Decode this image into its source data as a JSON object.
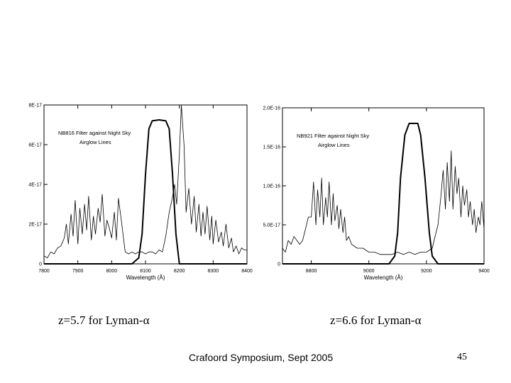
{
  "chart_data": [
    {
      "type": "line",
      "series": [
        {
          "name": "Night Sky Airglow Lines",
          "x": [
            7800,
            7810,
            7820,
            7830,
            7840,
            7850,
            7860,
            7866,
            7872,
            7880,
            7886,
            7892,
            7900,
            7906,
            7913,
            7920,
            7926,
            7932,
            7940,
            7946,
            7952,
            7960,
            7966,
            7972,
            7980,
            7986,
            7993,
            8000,
            8008,
            8014,
            8020,
            8030,
            8040,
            8050,
            8060,
            8070,
            8080,
            8090,
            8100,
            8110,
            8120,
            8130,
            8140,
            8150,
            8160,
            8170,
            8178,
            8186,
            8192,
            8200,
            8206,
            8214,
            8220,
            8228,
            8236,
            8244,
            8250,
            8258,
            8264,
            8270,
            8276,
            8282,
            8290,
            8296,
            8300,
            8308,
            8316,
            8324,
            8330,
            8338,
            8346,
            8354,
            8360,
            8368,
            8376,
            8384,
            8392,
            8400
          ],
          "y": [
            4e-18,
            3e-18,
            6e-18,
            5e-18,
            8e-18,
            9e-18,
            1.3e-17,
            2e-17,
            1e-17,
            2.5e-17,
            1.4e-17,
            3.2e-17,
            1e-17,
            2.8e-17,
            1.5e-17,
            3e-17,
            1.7e-17,
            3.4e-17,
            1.2e-17,
            2.4e-17,
            1.5e-17,
            2.8e-17,
            2.1e-17,
            3.5e-17,
            1.4e-17,
            2.2e-17,
            1.8e-17,
            1.3e-17,
            2.6e-17,
            1.2e-17,
            3.3e-17,
            2e-17,
            6e-18,
            5e-18,
            6e-18,
            5e-18,
            6e-18,
            6e-18,
            5e-18,
            6e-18,
            6e-18,
            5e-18,
            7e-18,
            6e-18,
            1.4e-17,
            2.6e-17,
            3.2e-17,
            4e-17,
            3e-17,
            5.5e-17,
            8e-17,
            6e-17,
            2.6e-17,
            3.8e-17,
            2e-17,
            3.4e-17,
            1.6e-17,
            3e-17,
            1.4e-17,
            2.6e-17,
            1.5e-17,
            2.9e-17,
            1.2e-17,
            2.4e-17,
            1e-17,
            2.2e-17,
            1.1e-17,
            1.6e-17,
            9e-18,
            2e-17,
            8e-18,
            1.3e-17,
            6e-18,
            9e-18,
            5e-18,
            8e-18,
            7e-18,
            7e-18
          ]
        },
        {
          "name": "NB816 Filter",
          "x": [
            7800,
            8040,
            8060,
            8080,
            8090,
            8100,
            8110,
            8120,
            8140,
            8160,
            8170,
            8180,
            8190,
            8200,
            8400
          ],
          "y": [
            0,
            0,
            0,
            3e-18,
            1.5e-17,
            4.5e-17,
            6.8e-17,
            7.2e-17,
            7.25e-17,
            7.2e-17,
            6.8e-17,
            4.5e-17,
            1.5e-17,
            0,
            0
          ]
        }
      ],
      "annotations": [
        "NB816 Filter against Night Sky",
        "Airglow Lines"
      ],
      "xlabel": "Wavelength (Å)",
      "xlim": [
        7800,
        8400
      ],
      "ylim": [
        0,
        8e-17
      ],
      "xticks": [
        7800,
        7900,
        8000,
        8100,
        8200,
        8300,
        8400
      ],
      "yticks": [
        0,
        2e-17,
        4e-17,
        6e-17,
        8e-17
      ],
      "ytick_labels": [
        "0",
        "2E-17",
        "4E-17",
        "6E-17",
        "8E-17"
      ]
    },
    {
      "type": "line",
      "series": [
        {
          "name": "Night Sky Airglow Lines",
          "x": [
            8700,
            8710,
            8720,
            8730,
            8740,
            8750,
            8760,
            8770,
            8780,
            8790,
            8800,
            8808,
            8816,
            8822,
            8830,
            8836,
            8842,
            8850,
            8856,
            8862,
            8870,
            8876,
            8882,
            8890,
            8896,
            8902,
            8910,
            8916,
            8922,
            8930,
            8940,
            8960,
            8980,
            9000,
            9020,
            9040,
            9060,
            9080,
            9100,
            9120,
            9140,
            9160,
            9180,
            9200,
            9220,
            9230,
            9240,
            9250,
            9258,
            9266,
            9272,
            9280,
            9286,
            9292,
            9300,
            9306,
            9312,
            9320,
            9326,
            9332,
            9340,
            9346,
            9352,
            9360,
            9366,
            9372,
            9380,
            9386,
            9392,
            9400
          ],
          "y": [
            2e-17,
            1.5e-17,
            3e-17,
            2.5e-17,
            3.5e-17,
            3e-17,
            2.5e-17,
            3e-17,
            4.5e-17,
            6e-17,
            6e-17,
            1.05e-16,
            5e-17,
            9.5e-17,
            6e-17,
            1.1e-16,
            5e-17,
            8.5e-17,
            6e-17,
            1.05e-16,
            5e-17,
            9e-17,
            5.5e-17,
            7.5e-17,
            4.5e-17,
            7e-17,
            4e-17,
            6e-17,
            3e-17,
            3.5e-17,
            2.5e-17,
            2e-17,
            2e-17,
            1.5e-17,
            1.5e-17,
            1.2e-17,
            1.2e-17,
            1.2e-17,
            1.5e-17,
            1.2e-17,
            1.5e-17,
            1.2e-17,
            1.5e-17,
            1.5e-17,
            2e-17,
            3.5e-17,
            5e-17,
            8.5e-17,
            1.2e-16,
            7e-17,
            1.3e-16,
            8e-17,
            1.45e-16,
            7e-17,
            1.25e-16,
            9e-17,
            1.1e-16,
            6e-17,
            1e-16,
            7.5e-17,
            9.5e-17,
            6e-17,
            8e-17,
            5e-17,
            7e-17,
            4e-17,
            6e-17,
            5e-17,
            8e-17,
            4.5e-17
          ]
        },
        {
          "name": "NB921 Filter",
          "x": [
            8700,
            9050,
            9070,
            9090,
            9100,
            9110,
            9125,
            9140,
            9170,
            9180,
            9195,
            9210,
            9220,
            9240,
            9400
          ],
          "y": [
            0,
            0,
            0,
            1e-17,
            4e-17,
            1.1e-16,
            1.65e-16,
            1.8e-16,
            1.8e-16,
            1.65e-16,
            1.1e-16,
            4e-17,
            1e-17,
            0,
            0
          ]
        }
      ],
      "annotations": [
        "NB921 Filter against Night Sky",
        "Airglow Lines"
      ],
      "xlabel": "Wavelength (Å)",
      "xlim": [
        8700,
        9400
      ],
      "ylim": [
        0,
        2e-16
      ],
      "xticks": [
        8800,
        9000,
        9200,
        9400
      ],
      "yticks": [
        0,
        5e-17,
        1e-16,
        1.5e-16,
        2e-16
      ],
      "ytick_labels": [
        "0",
        "5.0E-17",
        "1.0E-16",
        "1.5E-16",
        "2.0E-16"
      ]
    }
  ],
  "captions": {
    "left": "z=5.7 for Lyman-α",
    "right": "z=6.6 for Lyman-α"
  },
  "footer": {
    "text": "Crafoord Symposium, Sept 2005",
    "page": "45"
  }
}
